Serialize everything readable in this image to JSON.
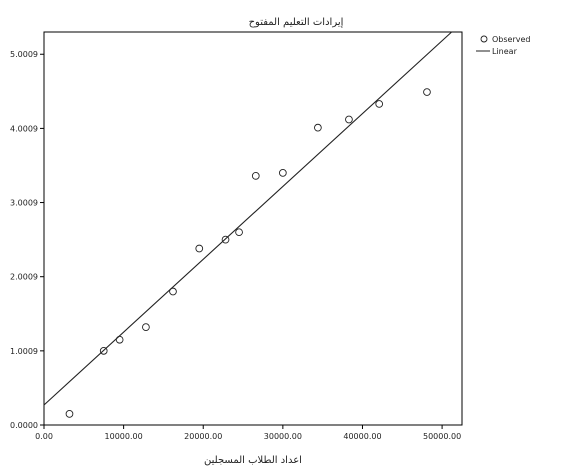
{
  "chart_data": {
    "type": "scatter",
    "title": "إيرادات التعليم المفتوح",
    "xlabel": "اعداد الطلاب المسجلين",
    "ylabel": "",
    "xlim": [
      0,
      52500
    ],
    "ylim": [
      0,
      5300000000
    ],
    "x_ticks": [
      0,
      10000,
      20000,
      30000,
      40000,
      50000
    ],
    "x_tick_labels": [
      "0.00",
      "10000.00",
      "20000.00",
      "30000.00",
      "40000.00",
      "50000.00"
    ],
    "y_ticks": [
      0,
      1000000000,
      2000000000,
      3000000000,
      4000000000,
      5000000000
    ],
    "y_tick_labels": [
      "0.0000",
      "1.0009",
      "2.0009",
      "3.0009",
      "4.0009",
      "5.0009"
    ],
    "grid": false,
    "legend_position": "top-right",
    "series": [
      {
        "name": "Observed",
        "kind": "points",
        "marker": "open-circle",
        "points": [
          [
            3200,
            150000000
          ],
          [
            7500,
            1000000000
          ],
          [
            9500,
            1150000000
          ],
          [
            12800,
            1320000000
          ],
          [
            16200,
            1800000000
          ],
          [
            19500,
            2380000000
          ],
          [
            22800,
            2500000000
          ],
          [
            24500,
            2600000000
          ],
          [
            26600,
            3360000000
          ],
          [
            30000,
            3400000000
          ],
          [
            34400,
            4010000000
          ],
          [
            38300,
            4120000000
          ],
          [
            42100,
            4330000000
          ],
          [
            48100,
            4490000000
          ]
        ]
      },
      {
        "name": "Linear",
        "kind": "fit-line",
        "points": [
          [
            0,
            270000000
          ],
          [
            51200,
            5300000000
          ]
        ]
      }
    ]
  }
}
